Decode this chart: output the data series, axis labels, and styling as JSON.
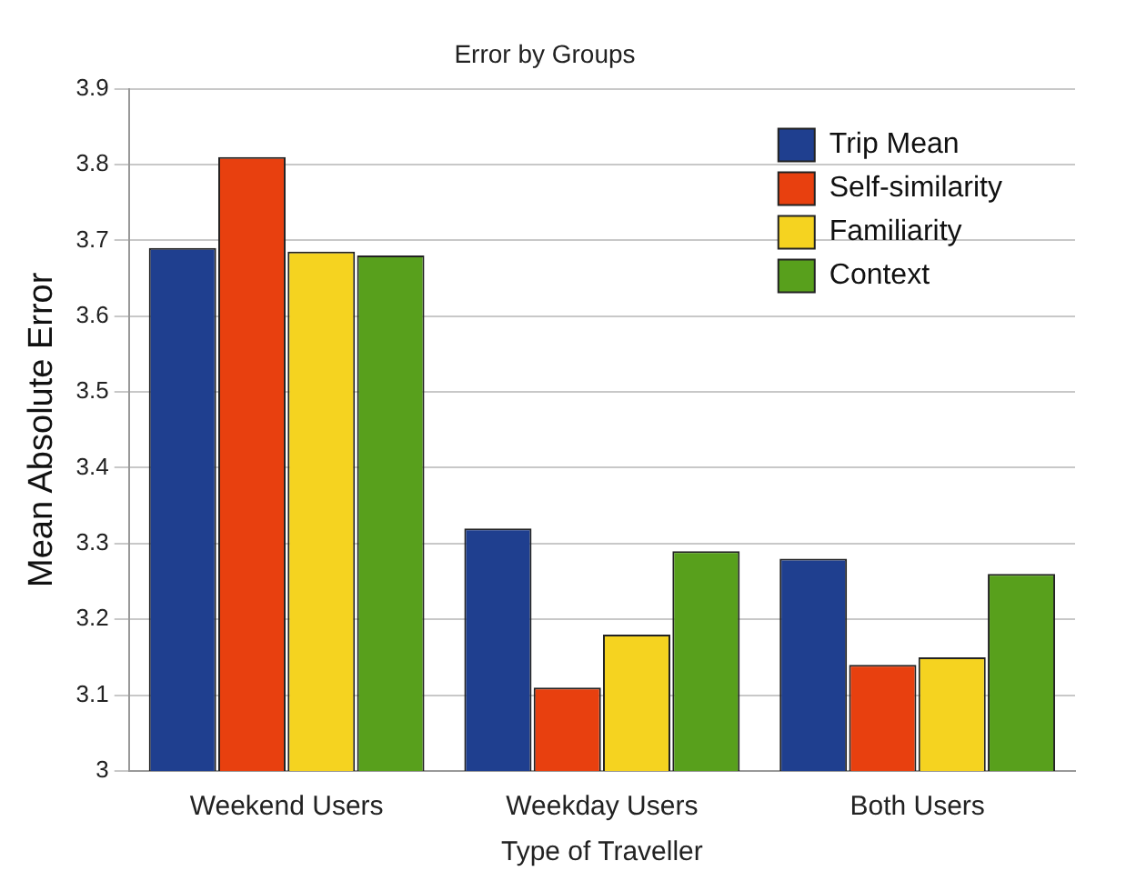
{
  "chart_data": {
    "type": "bar",
    "title": "Error by Groups",
    "xlabel": "Type of Traveller",
    "ylabel": "Mean Absolute Error",
    "categories": [
      "Weekend Users",
      "Weekday Users",
      "Both Users"
    ],
    "series": [
      {
        "name": "Trip Mean",
        "color": "#1f3f8f",
        "values": [
          3.69,
          3.32,
          3.28
        ]
      },
      {
        "name": "Self-similarity",
        "color": "#e8400f",
        "values": [
          3.81,
          3.11,
          3.14
        ]
      },
      {
        "name": "Familiarity",
        "color": "#f5d320",
        "values": [
          3.685,
          3.18,
          3.15
        ]
      },
      {
        "name": "Context",
        "color": "#58a01c",
        "values": [
          3.68,
          3.29,
          3.26
        ]
      }
    ],
    "ylim": [
      3,
      3.9
    ],
    "yticks": [
      3,
      3.1,
      3.2,
      3.3,
      3.4,
      3.5,
      3.6,
      3.7,
      3.8,
      3.9
    ],
    "grid": "y",
    "legend": "top right"
  }
}
